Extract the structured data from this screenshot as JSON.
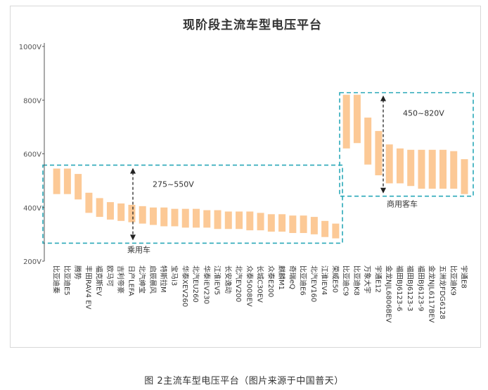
{
  "caption": "图 2主流车型电压平台（图片来源于中国普天）",
  "chart_data": {
    "type": "bar",
    "subtype": "floating-range",
    "title": "现阶段主流车型电压平台",
    "yunit": "V",
    "ylim": [
      200,
      1000
    ],
    "yticks": [
      200,
      400,
      600,
      800,
      1000
    ],
    "ytick_labels": [
      "200V",
      "400V",
      "600V",
      "800V",
      "1000V"
    ],
    "grid": false,
    "bar_color": "#fcc996",
    "box_color": "#2aa8b8",
    "arrow_color": "#222222",
    "categories": [
      "比亚迪秦",
      "比亚迪E5",
      "腾势",
      "丰田RAV4 EV",
      "福克斯EV",
      "欧马可",
      "吉利帝豪",
      "日产LEFA",
      "北汽绅宝",
      "启辰晨风",
      "特斯拉M",
      "宝马i3",
      "华泰XEV260",
      "北汽EU260",
      "华泰iEV230",
      "江淮iEV5",
      "长安逸动",
      "北汽EV200",
      "众泰5008EV",
      "长城C30EV",
      "众泰E200",
      "麒麟M1",
      "奇瑞eQ",
      "比亚迪E6",
      "北汽EV160",
      "江淮iEV4",
      "荣威E50",
      "比亚迪C9",
      "比亚迪K8",
      "万象大宇",
      "宇通E12",
      "金龙NJL6806BEV",
      "福田BJ6123-6",
      "福田BJ6123-3",
      "福田BJ6123-9",
      "金龙NJL6117BEV",
      "五洲龙FDG6128",
      "比亚迪K9",
      "宇通E8"
    ],
    "series": [
      {
        "low": [
          450,
          450,
          430,
          380,
          365,
          355,
          350,
          345,
          340,
          335,
          330,
          330,
          325,
          325,
          325,
          320,
          320,
          320,
          315,
          315,
          310,
          310,
          305,
          305,
          300,
          290,
          285,
          620,
          640,
          560,
          520,
          490,
          490,
          480,
          470,
          470,
          470,
          470,
          450
        ],
        "high": [
          545,
          545,
          525,
          455,
          435,
          420,
          415,
          410,
          405,
          400,
          400,
          395,
          395,
          395,
          390,
          390,
          385,
          385,
          385,
          380,
          375,
          375,
          370,
          370,
          365,
          350,
          340,
          820,
          820,
          735,
          685,
          635,
          620,
          615,
          615,
          615,
          615,
          610,
          580
        ]
      }
    ],
    "groups": [
      {
        "label": "乘用车",
        "range_label": "275~550V",
        "range": [
          275,
          550
        ],
        "first": 0,
        "last": 26
      },
      {
        "label": "商用客车",
        "range_label": "450~820V",
        "range": [
          450,
          820
        ],
        "first": 27,
        "last": 38
      }
    ]
  }
}
